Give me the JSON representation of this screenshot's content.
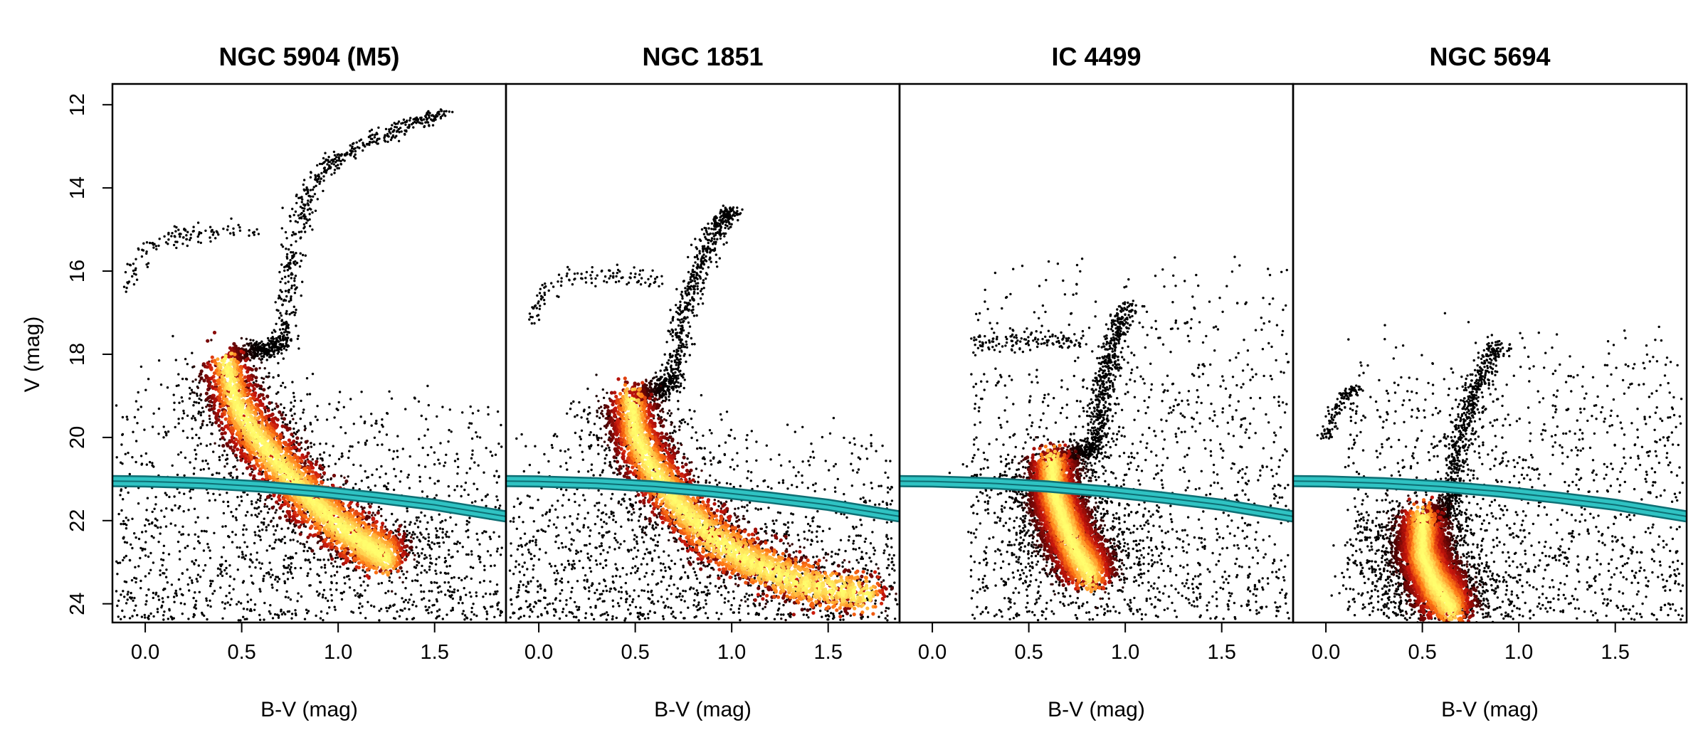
{
  "colors": {
    "background": "#ffffff",
    "axis": "#000000",
    "ridge_line_fill": "#2fc3c3",
    "ridge_line_edge": "#0e6f74",
    "density_low": "#000000",
    "density_mid": "#b3120d",
    "density_high": "#ffff66"
  },
  "chart_data": [
    {
      "type": "scatter",
      "title": "NGC 5904 (M5)",
      "xlabel": "B-V (mag)",
      "ylabel": "V (mag)",
      "xlim": [
        -0.17,
        1.87
      ],
      "ylim": [
        24.45,
        11.5
      ],
      "xticks": [
        "0.0",
        "0.5",
        "1.0",
        "1.5"
      ],
      "yticks": [
        "12",
        "14",
        "16",
        "18",
        "20",
        "22",
        "24"
      ],
      "shared_y_axis_shown": true,
      "density_coloring": "black to red to yellow (point density)",
      "features": {
        "main_sequence_ridge": [
          [
            0.42,
            18.2
          ],
          [
            0.47,
            19.2
          ],
          [
            0.58,
            20.0
          ],
          [
            0.72,
            20.8
          ],
          [
            0.86,
            21.5
          ],
          [
            1.0,
            22.1
          ],
          [
            1.15,
            22.6
          ],
          [
            1.25,
            22.9
          ]
        ],
        "turnoff": [
          0.45,
          18.0
        ],
        "subgiant_branch": [
          [
            0.45,
            18.0
          ],
          [
            0.6,
            17.9
          ],
          [
            0.72,
            17.7
          ]
        ],
        "red_giant_branch": [
          [
            0.72,
            17.7
          ],
          [
            0.74,
            16.5
          ],
          [
            0.78,
            15.2
          ],
          [
            0.85,
            14.0
          ],
          [
            0.98,
            13.3
          ],
          [
            1.2,
            12.8
          ],
          [
            1.42,
            12.4
          ],
          [
            1.56,
            12.2
          ]
        ],
        "horizontal_branch": [
          [
            -0.1,
            16.4
          ],
          [
            -0.05,
            15.8
          ],
          [
            0.05,
            15.3
          ],
          [
            0.2,
            15.1
          ],
          [
            0.38,
            15.1
          ],
          [
            0.6,
            15.0
          ]
        ],
        "sequence_widths": {
          "ms": 0.08,
          "rgb": 0.03,
          "hb": 0.12
        }
      },
      "limit_line": {
        "description": "teal band curve",
        "x": [
          -0.17,
          0.0,
          0.3,
          0.6,
          0.9,
          1.2,
          1.5,
          1.87
        ],
        "y": [
          21.05,
          21.06,
          21.1,
          21.18,
          21.3,
          21.45,
          21.62,
          21.9
        ]
      },
      "field_scatter": {
        "x_range": [
          -0.15,
          1.85
        ],
        "y_range": [
          18.5,
          24.4
        ]
      }
    },
    {
      "type": "scatter",
      "title": "NGC 1851",
      "xlabel": "B-V (mag)",
      "ylabel": "",
      "xlim": [
        -0.17,
        1.87
      ],
      "ylim": [
        24.45,
        11.5
      ],
      "xticks": [
        "0.0",
        "0.5",
        "1.0",
        "1.5"
      ],
      "yticks": [],
      "shared_y_axis_shown": false,
      "density_coloring": "black to red to yellow (point density)",
      "features": {
        "main_sequence_ridge": [
          [
            0.48,
            19.1
          ],
          [
            0.5,
            19.9
          ],
          [
            0.58,
            20.7
          ],
          [
            0.72,
            21.6
          ],
          [
            0.9,
            22.4
          ],
          [
            1.1,
            23.0
          ],
          [
            1.35,
            23.5
          ],
          [
            1.7,
            23.8
          ]
        ],
        "turnoff": [
          0.5,
          19.0
        ],
        "subgiant_branch": [
          [
            0.5,
            19.0
          ],
          [
            0.6,
            18.9
          ],
          [
            0.7,
            18.6
          ]
        ],
        "red_giant_branch": [
          [
            0.7,
            18.6
          ],
          [
            0.74,
            17.3
          ],
          [
            0.82,
            16.0
          ],
          [
            0.92,
            15.0
          ],
          [
            1.0,
            14.5
          ]
        ],
        "horizontal_branch": [
          [
            -0.05,
            17.3
          ],
          [
            0.02,
            16.5
          ],
          [
            0.15,
            16.1
          ],
          [
            0.35,
            16.1
          ],
          [
            0.5,
            16.15
          ],
          [
            0.62,
            16.2
          ]
        ],
        "sequence_widths": {
          "ms": 0.08,
          "rgb": 0.03,
          "hb": 0.12
        }
      },
      "limit_line": {
        "description": "teal band curve",
        "x": [
          -0.17,
          0.0,
          0.3,
          0.6,
          0.9,
          1.2,
          1.5,
          1.87
        ],
        "y": [
          21.05,
          21.06,
          21.1,
          21.18,
          21.3,
          21.45,
          21.62,
          21.9
        ]
      },
      "field_scatter": {
        "x_range": [
          -0.15,
          1.85
        ],
        "y_range": [
          19.5,
          24.4
        ]
      }
    },
    {
      "type": "scatter",
      "title": "IC 4499",
      "xlabel": "B-V (mag)",
      "ylabel": "",
      "xlim": [
        -0.17,
        1.87
      ],
      "ylim": [
        24.45,
        11.5
      ],
      "xticks": [
        "0.0",
        "0.5",
        "1.0",
        "1.5"
      ],
      "yticks": [],
      "shared_y_axis_shown": false,
      "density_coloring": "black to red to yellow (point density)",
      "features": {
        "main_sequence_ridge": [
          [
            0.62,
            20.6
          ],
          [
            0.63,
            21.3
          ],
          [
            0.68,
            22.0
          ],
          [
            0.74,
            22.7
          ],
          [
            0.82,
            23.3
          ]
        ],
        "turnoff": [
          0.62,
          20.6
        ],
        "subgiant_branch": [
          [
            0.62,
            20.6
          ],
          [
            0.75,
            20.4
          ],
          [
            0.85,
            20.2
          ]
        ],
        "red_giant_branch": [
          [
            0.85,
            20.2
          ],
          [
            0.88,
            19.0
          ],
          [
            0.93,
            17.8
          ],
          [
            1.02,
            16.8
          ]
        ],
        "horizontal_branch": [
          [
            0.2,
            17.8
          ],
          [
            0.4,
            17.7
          ],
          [
            0.6,
            17.65
          ],
          [
            0.8,
            17.7
          ]
        ],
        "sequence_widths": {
          "ms": 0.08,
          "rgb": 0.03,
          "hb": 0.12
        }
      },
      "limit_line": {
        "description": "teal band curve",
        "x": [
          -0.17,
          0.0,
          0.3,
          0.6,
          0.9,
          1.2,
          1.5,
          1.87
        ],
        "y": [
          21.05,
          21.06,
          21.1,
          21.18,
          21.3,
          21.45,
          21.62,
          21.9
        ]
      },
      "field_scatter": {
        "x_range": [
          0.2,
          1.85
        ],
        "y_range": [
          15.5,
          24.4
        ]
      }
    },
    {
      "type": "scatter",
      "title": "NGC 5694",
      "xlabel": "B-V (mag)",
      "ylabel": "",
      "xlim": [
        -0.17,
        1.87
      ],
      "ylim": [
        24.45,
        11.5
      ],
      "xticks": [
        "0.0",
        "0.5",
        "1.0",
        "1.5"
      ],
      "yticks": [],
      "shared_y_axis_shown": false,
      "density_coloring": "black to red to yellow (point density)",
      "features": {
        "main_sequence_ridge": [
          [
            0.5,
            22.0
          ],
          [
            0.5,
            22.8
          ],
          [
            0.56,
            23.5
          ],
          [
            0.65,
            24.1
          ]
        ],
        "turnoff": [
          0.5,
          22.0
        ],
        "subgiant_branch": [
          [
            0.5,
            22.0
          ],
          [
            0.6,
            21.9
          ],
          [
            0.64,
            21.5
          ]
        ],
        "red_giant_branch": [
          [
            0.64,
            21.5
          ],
          [
            0.7,
            20.0
          ],
          [
            0.77,
            18.8
          ],
          [
            0.9,
            17.7
          ]
        ],
        "horizontal_branch": [
          [
            0.0,
            20.0
          ],
          [
            0.05,
            19.4
          ],
          [
            0.1,
            19.0
          ],
          [
            0.15,
            18.8
          ]
        ],
        "sequence_widths": {
          "ms": 0.08,
          "rgb": 0.03,
          "hb": 0.05
        }
      },
      "limit_line": {
        "description": "teal band curve",
        "x": [
          -0.17,
          0.0,
          0.3,
          0.6,
          0.9,
          1.2,
          1.5,
          1.87
        ],
        "y": [
          21.05,
          21.06,
          21.1,
          21.18,
          21.3,
          21.45,
          21.62,
          21.9
        ]
      },
      "field_scatter": {
        "x_range": [
          0.1,
          1.85
        ],
        "y_range": [
          17.0,
          24.4
        ]
      }
    }
  ]
}
